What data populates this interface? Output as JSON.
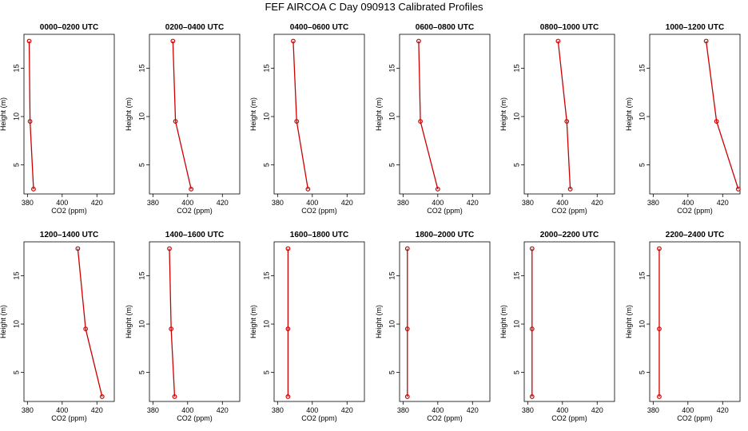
{
  "figure": {
    "title": "FEF AIRCOA C  Day 090913  Calibrated Profiles"
  },
  "chart_data": [
    {
      "type": "line",
      "title": "0000–0200 UTC",
      "xlabel": "CO2 (ppm)",
      "ylabel": "Height (m)",
      "xlim": [
        378,
        430
      ],
      "ylim": [
        2,
        18.5
      ],
      "xticks": [
        "380",
        "400",
        "420"
      ],
      "yticks": [
        "5",
        "10",
        "15"
      ],
      "color": "#cc0000",
      "series": [
        {
          "x": [
            381.0,
            381.5,
            383.5
          ],
          "y": [
            17.8,
            9.5,
            2.5
          ]
        }
      ]
    },
    {
      "type": "line",
      "title": "0200–0400 UTC",
      "xlabel": "CO2 (ppm)",
      "ylabel": "Height (m)",
      "xlim": [
        378,
        430
      ],
      "ylim": [
        2,
        18.5
      ],
      "xticks": [
        "380",
        "400",
        "420"
      ],
      "yticks": [
        "5",
        "10",
        "15"
      ],
      "color": "#cc0000",
      "series": [
        {
          "x": [
            391.5,
            393.0,
            402.0
          ],
          "y": [
            17.8,
            9.5,
            2.5
          ]
        }
      ]
    },
    {
      "type": "line",
      "title": "0400–0600 UTC",
      "xlabel": "CO2 (ppm)",
      "ylabel": "Height (m)",
      "xlim": [
        378,
        430
      ],
      "ylim": [
        2,
        18.5
      ],
      "xticks": [
        "380",
        "400",
        "420"
      ],
      "yticks": [
        "5",
        "10",
        "15"
      ],
      "color": "#cc0000",
      "series": [
        {
          "x": [
            389.0,
            391.0,
            397.5
          ],
          "y": [
            17.8,
            9.5,
            2.5
          ]
        }
      ]
    },
    {
      "type": "line",
      "title": "0600–0800 UTC",
      "xlabel": "CO2 (ppm)",
      "ylabel": "Height (m)",
      "xlim": [
        378,
        430
      ],
      "ylim": [
        2,
        18.5
      ],
      "xticks": [
        "380",
        "400",
        "420"
      ],
      "yticks": [
        "5",
        "10",
        "15"
      ],
      "color": "#cc0000",
      "series": [
        {
          "x": [
            389.0,
            390.0,
            400.0
          ],
          "y": [
            17.8,
            9.5,
            2.5
          ]
        }
      ]
    },
    {
      "type": "line",
      "title": "0800–1000 UTC",
      "xlabel": "CO2 (ppm)",
      "ylabel": "Height (m)",
      "xlim": [
        378,
        430
      ],
      "ylim": [
        2,
        18.5
      ],
      "xticks": [
        "380",
        "400",
        "420"
      ],
      "yticks": [
        "5",
        "10",
        "15"
      ],
      "color": "#cc0000",
      "series": [
        {
          "x": [
            397.5,
            402.5,
            404.5
          ],
          "y": [
            17.8,
            9.5,
            2.5
          ]
        }
      ]
    },
    {
      "type": "line",
      "title": "1000–1200 UTC",
      "xlabel": "CO2 (ppm)",
      "ylabel": "Height (m)",
      "xlim": [
        378,
        430
      ],
      "ylim": [
        2,
        18.5
      ],
      "xticks": [
        "380",
        "400",
        "420"
      ],
      "yticks": [
        "5",
        "10",
        "15"
      ],
      "color": "#cc0000",
      "series": [
        {
          "x": [
            410.5,
            416.5,
            429.0
          ],
          "y": [
            17.8,
            9.5,
            2.5
          ]
        }
      ]
    },
    {
      "type": "line",
      "title": "1200–1400 UTC",
      "xlabel": "CO2 (ppm)",
      "ylabel": "Height (m)",
      "xlim": [
        378,
        430
      ],
      "ylim": [
        2,
        18.5
      ],
      "xticks": [
        "380",
        "400",
        "420"
      ],
      "yticks": [
        "5",
        "10",
        "15"
      ],
      "color": "#cc0000",
      "series": [
        {
          "x": [
            409.0,
            413.5,
            423.0
          ],
          "y": [
            17.8,
            9.5,
            2.5
          ]
        }
      ]
    },
    {
      "type": "line",
      "title": "1400–1600 UTC",
      "xlabel": "CO2 (ppm)",
      "ylabel": "Height (m)",
      "xlim": [
        378,
        430
      ],
      "ylim": [
        2,
        18.5
      ],
      "xticks": [
        "380",
        "400",
        "420"
      ],
      "yticks": [
        "5",
        "10",
        "15"
      ],
      "color": "#cc0000",
      "series": [
        {
          "x": [
            389.5,
            390.5,
            392.5
          ],
          "y": [
            17.8,
            9.5,
            2.5
          ]
        }
      ]
    },
    {
      "type": "line",
      "title": "1600–1800 UTC",
      "xlabel": "CO2 (ppm)",
      "ylabel": "Height (m)",
      "xlim": [
        378,
        430
      ],
      "ylim": [
        2,
        18.5
      ],
      "xticks": [
        "380",
        "400",
        "420"
      ],
      "yticks": [
        "5",
        "10",
        "15"
      ],
      "color": "#cc0000",
      "series": [
        {
          "x": [
            386.0,
            386.0,
            386.0
          ],
          "y": [
            17.8,
            9.5,
            2.5
          ]
        }
      ]
    },
    {
      "type": "line",
      "title": "1800–2000 UTC",
      "xlabel": "CO2 (ppm)",
      "ylabel": "Height (m)",
      "xlim": [
        378,
        430
      ],
      "ylim": [
        2,
        18.5
      ],
      "xticks": [
        "380",
        "400",
        "420"
      ],
      "yticks": [
        "5",
        "10",
        "15"
      ],
      "color": "#cc0000",
      "series": [
        {
          "x": [
            382.5,
            382.5,
            382.5
          ],
          "y": [
            17.8,
            9.5,
            2.5
          ]
        }
      ]
    },
    {
      "type": "line",
      "title": "2000–2200 UTC",
      "xlabel": "CO2 (ppm)",
      "ylabel": "Height (m)",
      "xlim": [
        378,
        430
      ],
      "ylim": [
        2,
        18.5
      ],
      "xticks": [
        "380",
        "400",
        "420"
      ],
      "yticks": [
        "5",
        "10",
        "15"
      ],
      "color": "#cc0000",
      "series": [
        {
          "x": [
            382.5,
            382.5,
            382.5
          ],
          "y": [
            17.8,
            9.5,
            2.5
          ]
        }
      ]
    },
    {
      "type": "line",
      "title": "2200–2400 UTC",
      "xlabel": "CO2 (ppm)",
      "ylabel": "Height (m)",
      "xlim": [
        378,
        430
      ],
      "ylim": [
        2,
        18.5
      ],
      "xticks": [
        "380",
        "400",
        "420"
      ],
      "yticks": [
        "5",
        "10",
        "15"
      ],
      "color": "#cc0000",
      "series": [
        {
          "x": [
            383.5,
            383.5,
            383.5
          ],
          "y": [
            17.8,
            9.5,
            2.5
          ]
        }
      ]
    }
  ]
}
